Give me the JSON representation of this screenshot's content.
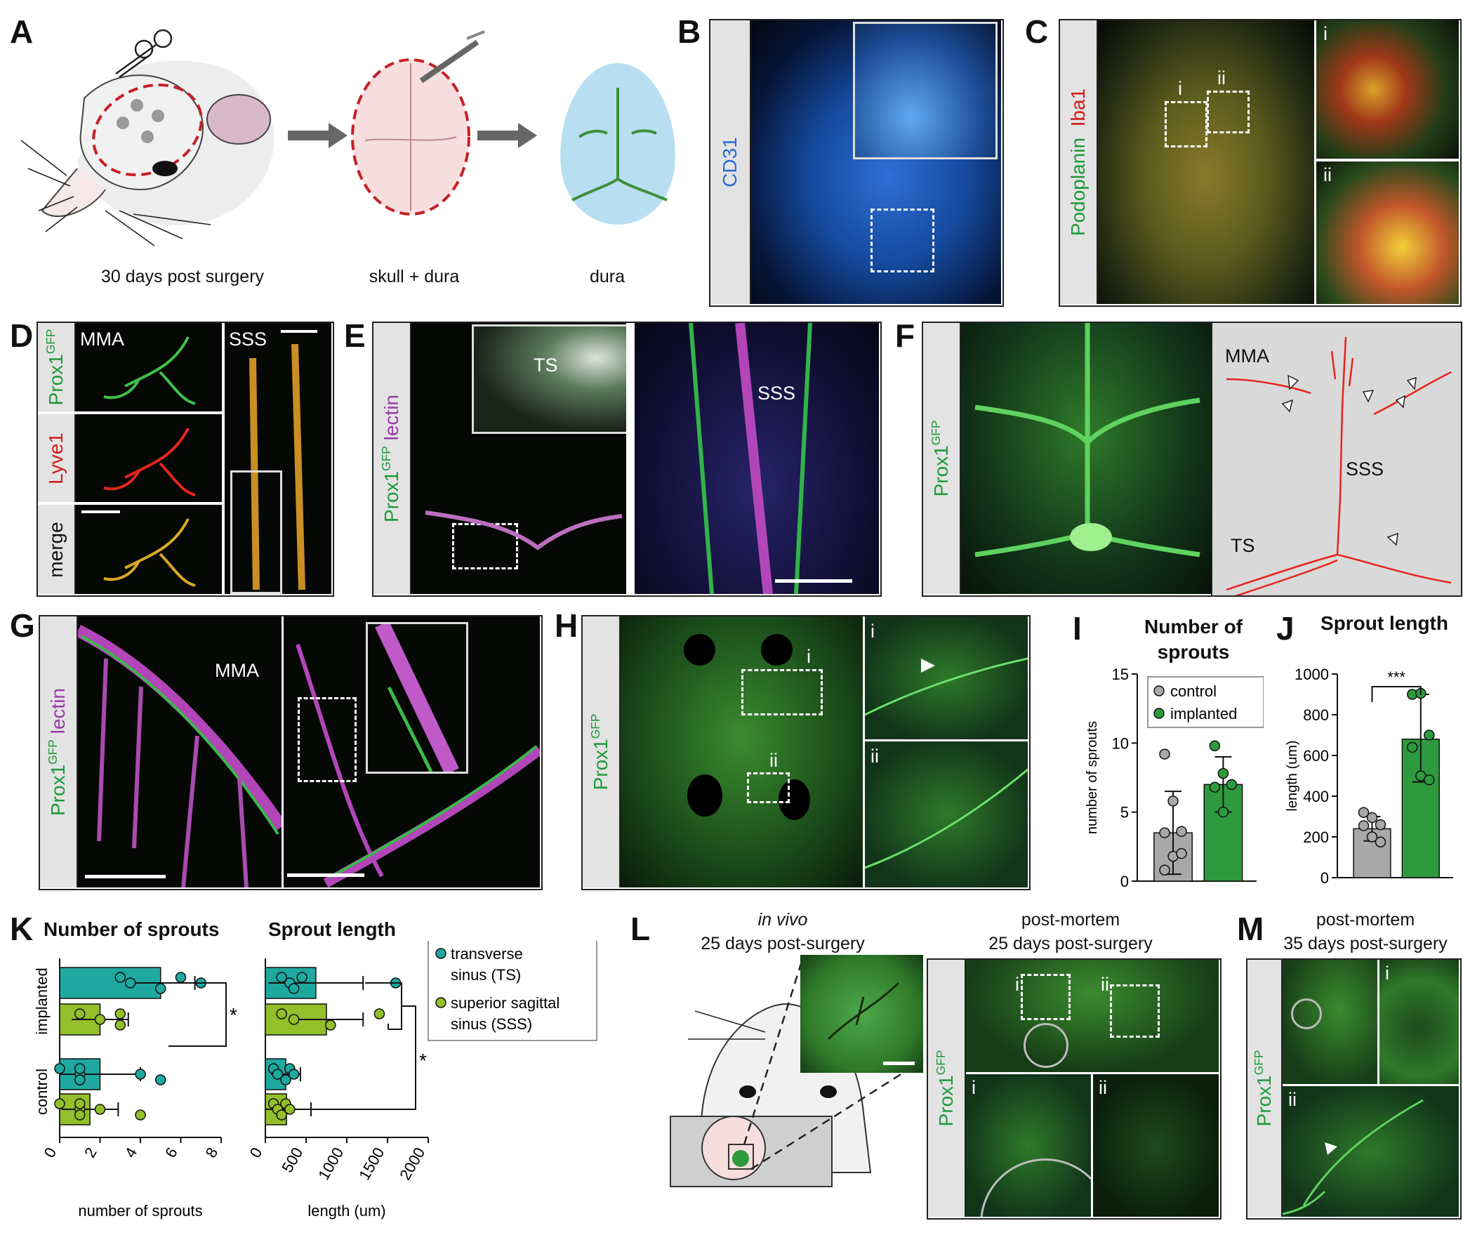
{
  "panels": {
    "A": {
      "letter": "A",
      "captions": [
        "30 days post surgery",
        "skull + dura",
        "dura"
      ]
    },
    "B": {
      "letter": "B",
      "stain": "CD31"
    },
    "C": {
      "letter": "C",
      "stain1": "Podoplanin",
      "stain2": "Iba1",
      "sub_i": "i",
      "sub_ii": "ii"
    },
    "D": {
      "letter": "D",
      "rows": [
        "Lyve1",
        "merge"
      ],
      "prox": "Prox1",
      "sup": "GFP",
      "mma": "MMA",
      "sss": "SSS"
    },
    "E": {
      "letter": "E",
      "prox": "Prox1",
      "sup": "GFP",
      "lectin": "lectin",
      "ts": "TS",
      "sss": "SSS"
    },
    "F": {
      "letter": "F",
      "prox": "Prox1",
      "sup": "GFP",
      "mma": "MMA",
      "sss": "SSS",
      "ts": "TS"
    },
    "G": {
      "letter": "G",
      "prox": "Prox1",
      "sup": "GFP",
      "lectin": "lectin",
      "mma": "MMA"
    },
    "H": {
      "letter": "H",
      "prox": "Prox1",
      "sup": "GFP",
      "sub_i": "i",
      "sub_ii": "ii"
    },
    "I": {
      "letter": "I",
      "title_line1": "Number of",
      "title_line2": "sprouts"
    },
    "J": {
      "letter": "J",
      "title": "Sprout length",
      "sig": "***"
    },
    "K": {
      "letter": "K",
      "title_left": "Number of sprouts",
      "title_right": "Sprout length",
      "sig": "*"
    },
    "L": {
      "letter": "L",
      "invivo_line1": "in vivo",
      "invivo_line2": "25 days post-surgery",
      "pm_line1": "post-mortem",
      "pm_line2": "25 days post-surgery",
      "prox": "Prox1",
      "sup": "GFP",
      "sub_i": "i",
      "sub_ii": "ii"
    },
    "M": {
      "letter": "M",
      "line1": "post-mortem",
      "line2": "35 days post-surgery",
      "prox": "Prox1",
      "sup": "GFP",
      "sub_i": "i",
      "sub_ii": "ii"
    }
  },
  "colors": {
    "control": "#a8a8a8",
    "implanted": "#2e9a3e",
    "ts": "#1fa8a0",
    "sss": "#93bf2a",
    "trace": "#e8231d",
    "prox_text": "#1d9a3a",
    "lectin_text": "#9b3aa8"
  },
  "chart_data": [
    {
      "id": "I",
      "type": "bar",
      "title": "Number of sprouts",
      "ylabel": "number of sprouts",
      "ylim": [
        0,
        15
      ],
      "yticks": [
        0,
        5,
        10,
        15
      ],
      "legend": [
        "control",
        "implanted"
      ],
      "legend_position": "top",
      "categories": [
        "control",
        "implanted"
      ],
      "series": [
        {
          "name": "control",
          "mean": 3.5,
          "sd_upper": 6.5,
          "sd_lower": 0.5,
          "points": [
            9.2,
            5.8,
            3.6,
            3.5,
            1.8,
            2.0,
            0.8
          ]
        },
        {
          "name": "implanted",
          "mean": 7.0,
          "sd_upper": 9.0,
          "sd_lower": 5.0,
          "points": [
            9.8,
            7.8,
            7.0,
            6.8,
            5.0
          ]
        }
      ]
    },
    {
      "id": "J",
      "type": "bar",
      "title": "Sprout length",
      "ylabel": "length (um)",
      "ylim": [
        0,
        1000
      ],
      "yticks": [
        0,
        200,
        400,
        600,
        800,
        1000
      ],
      "significance": "***",
      "categories": [
        "control",
        "implanted"
      ],
      "series": [
        {
          "name": "control",
          "mean": 240,
          "sd_upper": 300,
          "sd_lower": 180,
          "points": [
            320,
            295,
            260,
            255,
            200,
            175
          ]
        },
        {
          "name": "implanted",
          "mean": 680,
          "sd_upper": 900,
          "sd_lower": 470,
          "points": [
            900,
            905,
            700,
            640,
            500,
            480
          ]
        }
      ]
    },
    {
      "id": "K-left",
      "type": "bar",
      "orientation": "horizontal",
      "title": "Number of sprouts",
      "xlabel": "number of sprouts",
      "xlim": [
        0,
        8
      ],
      "xticks": [
        0,
        2,
        4,
        6,
        8
      ],
      "groups": [
        "implanted",
        "control"
      ],
      "series": [
        {
          "name": "transverse sinus (TS)",
          "values": {
            "implanted": 5.0,
            "control": 2.0
          },
          "sd": {
            "implanted": 1.7,
            "control": 2.0
          },
          "points": {
            "implanted": [
              3.0,
              3.5,
              5.0,
              6.0,
              7.0
            ],
            "control": [
              0.0,
              1.0,
              1.0,
              1.0,
              4.0,
              5.0
            ]
          }
        },
        {
          "name": "superior sagittal sinus (SSS)",
          "values": {
            "implanted": 2.0,
            "control": 1.5
          },
          "sd": {
            "implanted": 1.4,
            "control": 1.4
          },
          "points": {
            "implanted": [
              1.0,
              2.0,
              3.0,
              3.0
            ],
            "control": [
              0.0,
              1.0,
              1.0,
              1.0,
              2.0,
              4.0
            ]
          }
        }
      ],
      "significance": "*"
    },
    {
      "id": "K-right",
      "type": "bar",
      "orientation": "horizontal",
      "title": "Sprout length",
      "xlabel": "length (um)",
      "xlim": [
        0,
        2000
      ],
      "xticks": [
        0,
        500,
        1000,
        1500,
        2000
      ],
      "groups": [
        "implanted",
        "control"
      ],
      "series": [
        {
          "name": "transverse sinus (TS)",
          "values": {
            "implanted": 620,
            "control": 250
          },
          "sd": {
            "implanted": 580,
            "control": 180
          },
          "points": {
            "implanted": [
              200,
              300,
              350,
              450,
              1600
            ],
            "control": [
              100,
              150,
              250,
              300,
              350
            ]
          }
        },
        {
          "name": "superior sagittal sinus (SSS)",
          "values": {
            "implanted": 750,
            "control": 260
          },
          "sd": {
            "implanted": 450,
            "control": 300
          },
          "points": {
            "implanted": [
              200,
              350,
              800,
              1400
            ],
            "control": [
              100,
              150,
              200,
              250,
              300
            ]
          }
        }
      ],
      "legend": [
        "transverse sinus (TS)",
        "superior sagittal sinus (SSS)"
      ],
      "significance": "*"
    }
  ]
}
